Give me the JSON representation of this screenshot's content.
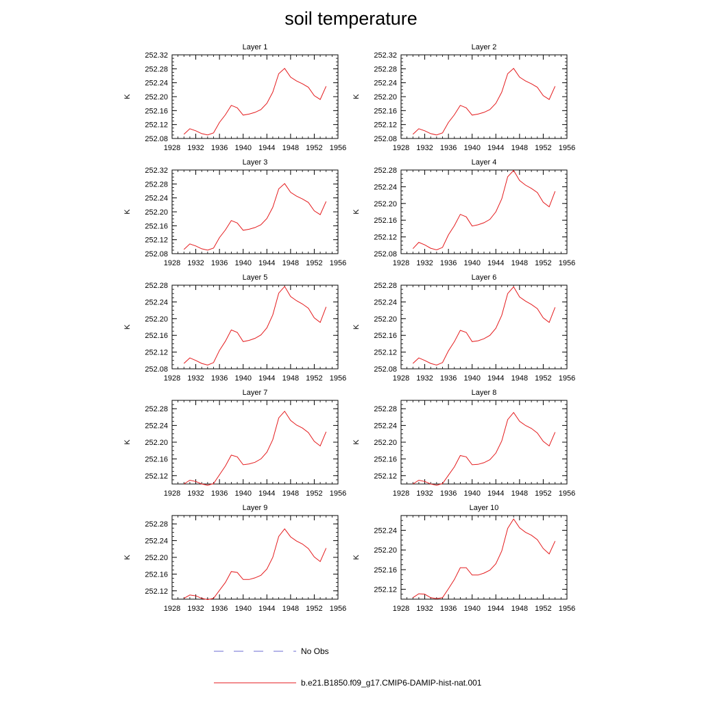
{
  "title": "soil temperature",
  "legend": [
    {
      "label": "No Obs",
      "color": "#6a6ad0",
      "dash": "dashed"
    },
    {
      "label": "b.e21.B1850.f09_g17.CMIP6-DAMIP-hist-nat.001",
      "color": "#e41a1c",
      "dash": "solid"
    }
  ],
  "chart_data": [
    {
      "type": "line",
      "title": "Layer 1",
      "ylabel": "K",
      "xlim": [
        1928,
        1956
      ],
      "ylim": [
        252.08,
        252.32
      ],
      "xticks": [
        1928,
        1932,
        1936,
        1940,
        1944,
        1948,
        1952,
        1956
      ],
      "yticks": [
        "252.08",
        "252.12",
        "252.16",
        "252.20",
        "252.24",
        "252.28",
        "252.32"
      ],
      "series": [
        {
          "color": "#e41a1c",
          "x": [
            1930,
            1931,
            1932,
            1933,
            1934,
            1935,
            1936,
            1937,
            1938,
            1939,
            1940,
            1941,
            1942,
            1943,
            1944,
            1945,
            1946,
            1947,
            1948,
            1949,
            1950,
            1951,
            1952,
            1953,
            1954
          ],
          "y": [
            252.092,
            252.108,
            252.102,
            252.094,
            252.09,
            252.096,
            252.126,
            252.148,
            252.175,
            252.168,
            252.147,
            252.15,
            252.155,
            252.163,
            252.181,
            252.213,
            252.266,
            252.281,
            252.256,
            252.245,
            252.237,
            252.227,
            252.203,
            252.192,
            252.23
          ]
        }
      ]
    },
    {
      "type": "line",
      "title": "Layer 2",
      "ylabel": "K",
      "xlim": [
        1928,
        1956
      ],
      "ylim": [
        252.08,
        252.32
      ],
      "xticks": [
        1928,
        1932,
        1936,
        1940,
        1944,
        1948,
        1952,
        1956
      ],
      "yticks": [
        "252.08",
        "252.12",
        "252.16",
        "252.20",
        "252.24",
        "252.28",
        "252.32"
      ],
      "series": [
        {
          "color": "#e41a1c",
          "x": [
            1930,
            1931,
            1932,
            1933,
            1934,
            1935,
            1936,
            1937,
            1938,
            1939,
            1940,
            1941,
            1942,
            1943,
            1944,
            1945,
            1946,
            1947,
            1948,
            1949,
            1950,
            1951,
            1952,
            1953,
            1954
          ],
          "y": [
            252.092,
            252.108,
            252.102,
            252.094,
            252.09,
            252.096,
            252.126,
            252.148,
            252.175,
            252.168,
            252.147,
            252.15,
            252.155,
            252.163,
            252.181,
            252.213,
            252.266,
            252.281,
            252.256,
            252.245,
            252.237,
            252.227,
            252.203,
            252.192,
            252.23
          ]
        }
      ]
    },
    {
      "type": "line",
      "title": "Layer 3",
      "ylabel": "K",
      "xlim": [
        1928,
        1956
      ],
      "ylim": [
        252.08,
        252.32
      ],
      "xticks": [
        1928,
        1932,
        1936,
        1940,
        1944,
        1948,
        1952,
        1956
      ],
      "yticks": [
        "252.08",
        "252.12",
        "252.16",
        "252.20",
        "252.24",
        "252.28",
        "252.32"
      ],
      "series": [
        {
          "color": "#e41a1c",
          "x": [
            1930,
            1931,
            1932,
            1933,
            1934,
            1935,
            1936,
            1937,
            1938,
            1939,
            1940,
            1941,
            1942,
            1943,
            1944,
            1945,
            1946,
            1947,
            1948,
            1949,
            1950,
            1951,
            1952,
            1953,
            1954
          ],
          "y": [
            252.092,
            252.108,
            252.102,
            252.094,
            252.09,
            252.096,
            252.126,
            252.148,
            252.175,
            252.168,
            252.147,
            252.15,
            252.155,
            252.163,
            252.181,
            252.213,
            252.266,
            252.281,
            252.256,
            252.245,
            252.237,
            252.227,
            252.203,
            252.192,
            252.23
          ]
        }
      ]
    },
    {
      "type": "line",
      "title": "Layer 4",
      "ylabel": "K",
      "xlim": [
        1928,
        1956
      ],
      "ylim": [
        252.08,
        252.28
      ],
      "xticks": [
        1928,
        1932,
        1936,
        1940,
        1944,
        1948,
        1952,
        1956
      ],
      "yticks": [
        "252.08",
        "252.12",
        "252.16",
        "252.20",
        "252.24",
        "252.28"
      ],
      "series": [
        {
          "color": "#e41a1c",
          "x": [
            1930,
            1931,
            1932,
            1933,
            1934,
            1935,
            1936,
            1937,
            1938,
            1939,
            1940,
            1941,
            1942,
            1943,
            1944,
            1945,
            1946,
            1947,
            1948,
            1949,
            1950,
            1951,
            1952,
            1953,
            1954
          ],
          "y": [
            252.092,
            252.107,
            252.101,
            252.093,
            252.089,
            252.095,
            252.125,
            252.147,
            252.174,
            252.168,
            252.146,
            252.149,
            252.154,
            252.162,
            252.18,
            252.211,
            252.264,
            252.279,
            252.255,
            252.244,
            252.236,
            252.226,
            252.203,
            252.192,
            252.229
          ]
        }
      ]
    },
    {
      "type": "line",
      "title": "Layer 5",
      "ylabel": "K",
      "xlim": [
        1928,
        1956
      ],
      "ylim": [
        252.08,
        252.28
      ],
      "xticks": [
        1928,
        1932,
        1936,
        1940,
        1944,
        1948,
        1952,
        1956
      ],
      "yticks": [
        "252.08",
        "252.12",
        "252.16",
        "252.20",
        "252.24",
        "252.28"
      ],
      "series": [
        {
          "color": "#e41a1c",
          "x": [
            1930,
            1931,
            1932,
            1933,
            1934,
            1935,
            1936,
            1937,
            1938,
            1939,
            1940,
            1941,
            1942,
            1943,
            1944,
            1945,
            1946,
            1947,
            1948,
            1949,
            1950,
            1951,
            1952,
            1953,
            1954
          ],
          "y": [
            252.093,
            252.106,
            252.1,
            252.093,
            252.089,
            252.095,
            252.124,
            252.146,
            252.173,
            252.167,
            252.145,
            252.148,
            252.153,
            252.161,
            252.178,
            252.209,
            252.261,
            252.277,
            252.253,
            252.243,
            252.235,
            252.225,
            252.202,
            252.191,
            252.228
          ]
        }
      ]
    },
    {
      "type": "line",
      "title": "Layer 6",
      "ylabel": "K",
      "xlim": [
        1928,
        1956
      ],
      "ylim": [
        252.08,
        252.28
      ],
      "xticks": [
        1928,
        1932,
        1936,
        1940,
        1944,
        1948,
        1952,
        1956
      ],
      "yticks": [
        "252.08",
        "252.12",
        "252.16",
        "252.20",
        "252.24",
        "252.28"
      ],
      "series": [
        {
          "color": "#e41a1c",
          "x": [
            1930,
            1931,
            1932,
            1933,
            1934,
            1935,
            1936,
            1937,
            1938,
            1939,
            1940,
            1941,
            1942,
            1943,
            1944,
            1945,
            1946,
            1947,
            1948,
            1949,
            1950,
            1951,
            1952,
            1953,
            1954
          ],
          "y": [
            252.093,
            252.106,
            252.1,
            252.093,
            252.089,
            252.095,
            252.123,
            252.145,
            252.172,
            252.167,
            252.145,
            252.147,
            252.152,
            252.16,
            252.177,
            252.208,
            252.26,
            252.276,
            252.252,
            252.242,
            252.234,
            252.224,
            252.202,
            252.191,
            252.227
          ]
        }
      ]
    },
    {
      "type": "line",
      "title": "Layer 7",
      "ylabel": "K",
      "xlim": [
        1928,
        1956
      ],
      "ylim": [
        252.1,
        252.3
      ],
      "xticks": [
        1928,
        1932,
        1936,
        1940,
        1944,
        1948,
        1952,
        1956
      ],
      "yticks": [
        "252.12",
        "252.16",
        "252.20",
        "252.24",
        "252.28"
      ],
      "series": [
        {
          "color": "#e41a1c",
          "x": [
            1930,
            1931,
            1932,
            1933,
            1934,
            1935,
            1936,
            1937,
            1938,
            1939,
            1940,
            1941,
            1942,
            1943,
            1944,
            1945,
            1946,
            1947,
            1948,
            1949,
            1950,
            1951,
            1952,
            1953,
            1954
          ],
          "y": [
            252.1,
            252.109,
            252.106,
            252.1,
            252.097,
            252.101,
            252.122,
            252.143,
            252.169,
            252.165,
            252.146,
            252.148,
            252.152,
            252.16,
            252.176,
            252.206,
            252.258,
            252.274,
            252.252,
            252.241,
            252.234,
            252.223,
            252.202,
            252.191,
            252.225
          ]
        }
      ]
    },
    {
      "type": "line",
      "title": "Layer 8",
      "ylabel": "K",
      "xlim": [
        1928,
        1956
      ],
      "ylim": [
        252.1,
        252.3
      ],
      "xticks": [
        1928,
        1932,
        1936,
        1940,
        1944,
        1948,
        1952,
        1956
      ],
      "yticks": [
        "252.12",
        "252.16",
        "252.20",
        "252.24",
        "252.28"
      ],
      "series": [
        {
          "color": "#e41a1c",
          "x": [
            1930,
            1931,
            1932,
            1933,
            1934,
            1935,
            1936,
            1937,
            1938,
            1939,
            1940,
            1941,
            1942,
            1943,
            1944,
            1945,
            1946,
            1947,
            1948,
            1949,
            1950,
            1951,
            1952,
            1953,
            1954
          ],
          "y": [
            252.1,
            252.109,
            252.106,
            252.1,
            252.097,
            252.101,
            252.121,
            252.141,
            252.168,
            252.165,
            252.146,
            252.147,
            252.151,
            252.158,
            252.174,
            252.203,
            252.254,
            252.271,
            252.25,
            252.24,
            252.233,
            252.222,
            252.202,
            252.191,
            252.224
          ]
        }
      ]
    },
    {
      "type": "line",
      "title": "Layer 9",
      "ylabel": "K",
      "xlim": [
        1928,
        1956
      ],
      "ylim": [
        252.1,
        252.3
      ],
      "xticks": [
        1928,
        1932,
        1936,
        1940,
        1944,
        1948,
        1952,
        1956
      ],
      "yticks": [
        "252.12",
        "252.16",
        "252.20",
        "252.24",
        "252.28"
      ],
      "series": [
        {
          "color": "#e41a1c",
          "x": [
            1930,
            1931,
            1932,
            1933,
            1934,
            1935,
            1936,
            1937,
            1938,
            1939,
            1940,
            1941,
            1942,
            1943,
            1944,
            1945,
            1946,
            1947,
            1948,
            1949,
            1950,
            1951,
            1952,
            1953,
            1954
          ],
          "y": [
            252.102,
            252.11,
            252.108,
            252.102,
            252.099,
            252.102,
            252.121,
            252.14,
            252.166,
            252.164,
            252.147,
            252.147,
            252.151,
            252.157,
            252.172,
            252.2,
            252.25,
            252.268,
            252.249,
            252.239,
            252.232,
            252.221,
            252.201,
            252.19,
            252.222
          ]
        }
      ]
    },
    {
      "type": "line",
      "title": "Layer 10",
      "ylabel": "K",
      "xlim": [
        1928,
        1956
      ],
      "ylim": [
        252.1,
        252.27
      ],
      "xticks": [
        1928,
        1932,
        1936,
        1940,
        1944,
        1948,
        1952,
        1956
      ],
      "yticks": [
        "252.12",
        "252.16",
        "252.20",
        "252.24"
      ],
      "series": [
        {
          "color": "#e41a1c",
          "x": [
            1930,
            1931,
            1932,
            1933,
            1934,
            1935,
            1936,
            1937,
            1938,
            1939,
            1940,
            1941,
            1942,
            1943,
            1944,
            1945,
            1946,
            1947,
            1948,
            1949,
            1950,
            1951,
            1952,
            1953,
            1954
          ],
          "y": [
            252.103,
            252.111,
            252.11,
            252.103,
            252.101,
            252.103,
            252.121,
            252.14,
            252.164,
            252.164,
            252.149,
            252.149,
            252.153,
            252.159,
            252.172,
            252.198,
            252.244,
            252.263,
            252.245,
            252.236,
            252.23,
            252.221,
            252.203,
            252.192,
            252.218
          ]
        }
      ]
    }
  ]
}
